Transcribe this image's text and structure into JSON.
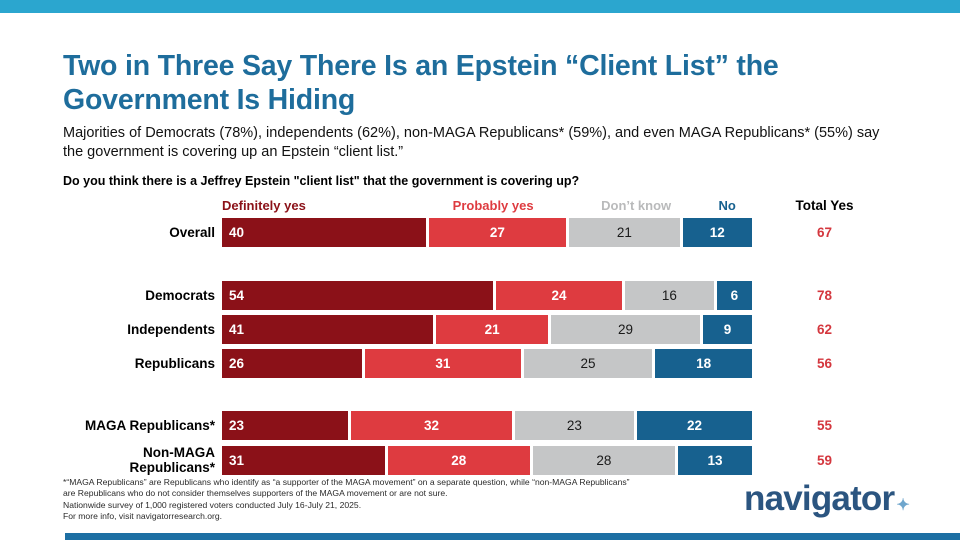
{
  "header": {
    "title": "Two in Three Say There Is an Epstein “Client List” the Government Is Hiding",
    "subtitle": "Majorities of Democrats (78%), independents (62%), non-MAGA Republicans* (59%), and even MAGA Republicans* (55%) say the government is covering up an Epstein “client list.”",
    "question": "Do you think there is a Jeffrey Epstein \"client list\" that the government is covering up?"
  },
  "chart_data": {
    "type": "bar",
    "orientation": "horizontal",
    "stacked": true,
    "axis_scale": "percent 0-100, bars sized to value",
    "column_headers": [
      "Definitely yes",
      "Probably yes",
      "Don’t know",
      "No",
      "Total Yes"
    ],
    "segment_colors": [
      "#8B1118",
      "#DE3B40",
      "#C5C6C7",
      "#17618F"
    ],
    "header_colors": [
      "#8B1118",
      "#DE3B40",
      "#B9BABB",
      "#17618F"
    ],
    "total_color": "#D4373E",
    "groups": [
      {
        "rows": [
          {
            "label": "Overall",
            "values": [
              40,
              27,
              21,
              12
            ],
            "total_yes": 67
          }
        ]
      },
      {
        "rows": [
          {
            "label": "Democrats",
            "values": [
              54,
              24,
              16,
              6
            ],
            "total_yes": 78
          },
          {
            "label": "Independents",
            "values": [
              41,
              21,
              29,
              9
            ],
            "total_yes": 62
          },
          {
            "label": "Republicans",
            "values": [
              26,
              31,
              25,
              18
            ],
            "total_yes": 56
          }
        ]
      },
      {
        "rows": [
          {
            "label": "MAGA Republicans*",
            "values": [
              23,
              32,
              23,
              22
            ],
            "total_yes": 55
          },
          {
            "label": "Non-MAGA Republicans*",
            "values": [
              31,
              28,
              28,
              13
            ],
            "total_yes": 59
          }
        ]
      }
    ]
  },
  "footnote": {
    "line1": "*“MAGA Republicans” are Republicans who identify as “a supporter of the MAGA movement” on a separate question, while “non-MAGA Republicans” are Republicans who do not consider themselves supporters of the MAGA movement or are not sure.",
    "line2": "Nationwide survey of 1,000 registered voters conducted July 16-July 21, 2025.",
    "line3": "For more info, visit navigatorresearch.org."
  },
  "logo": {
    "text": "navigator",
    "mark": "✦"
  },
  "colors": {
    "top_bar": "#2BA6CF",
    "bottom_bar": "#1D6FA3",
    "title": "#1E6D9C",
    "logo_text": "#2B5580",
    "logo_mark": "#6FA6CD"
  }
}
